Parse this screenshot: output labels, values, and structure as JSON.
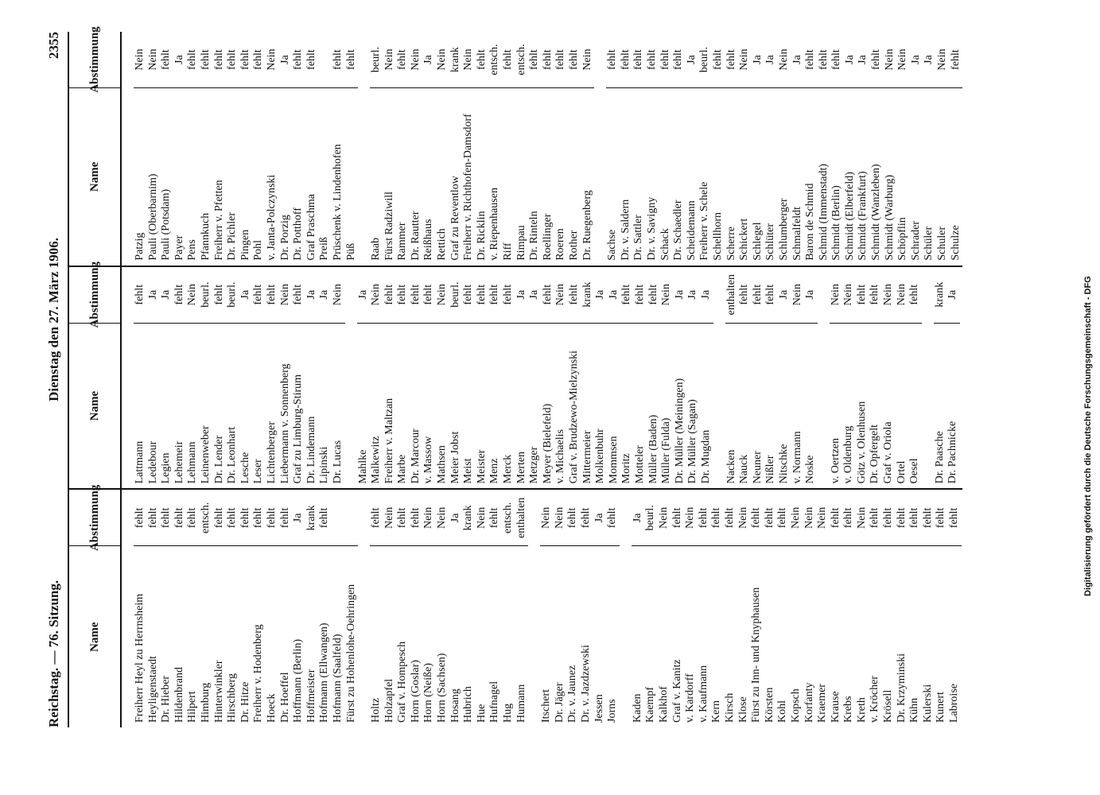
{
  "header": {
    "left": "Reichstag. — 76. Sitzung.",
    "center": "Dienstag den 27. März 1906.",
    "page": "2355"
  },
  "table": {
    "name_header": "Name",
    "vote_header": "Abstimmung",
    "columns": [
      {
        "groups": [
          [
            {
              "name": "Freiherr Heyl zu Herrnsheim",
              "vote": "fehlt"
            },
            {
              "name": "Heyligenstaedt",
              "vote": "fehlt"
            },
            {
              "name": "Dr. Hieber",
              "vote": "fehlt"
            },
            {
              "name": "Hildenbrand",
              "vote": "fehlt"
            },
            {
              "name": "Hilpert",
              "vote": "fehlt"
            },
            {
              "name": "Himburg",
              "vote": "entsch."
            },
            {
              "name": "Hinterwinkler",
              "vote": "fehlt"
            },
            {
              "name": "Hirschberg",
              "vote": "fehlt"
            },
            {
              "name": "Dr. Hitze",
              "vote": "fehlt"
            },
            {
              "name": "Freiherr v. Hodenberg",
              "vote": "fehlt"
            },
            {
              "name": "Hoeck",
              "vote": "fehlt"
            },
            {
              "name": "Dr. Hoeffel",
              "vote": "fehlt"
            },
            {
              "name": "Hoffmann (Berlin)",
              "vote": "Ja"
            },
            {
              "name": "Hoffmeister",
              "vote": "krank"
            },
            {
              "name": "Hofmann (Ellwangen)",
              "vote": "fehlt"
            },
            {
              "name": "Hofmann (Saalfeld)"
            },
            {
              "name": "Fürst zu Hohenlohe-Oehringen"
            }
          ],
          [
            {
              "name": "Holtz",
              "vote": "fehlt"
            },
            {
              "name": "Holzapfel",
              "vote": "Nein"
            },
            {
              "name": "Graf v. Hompesch",
              "vote": "fehlt"
            },
            {
              "name": "Horn (Goslar)",
              "vote": "fehlt"
            },
            {
              "name": "Horn (Neiße)",
              "vote": "Nein"
            },
            {
              "name": "Horn (Sachsen)",
              "vote": "Nein"
            },
            {
              "name": "Hosang",
              "vote": "Ja"
            },
            {
              "name": "Hubrich",
              "vote": "krank"
            },
            {
              "name": "Hue",
              "vote": "Nein"
            },
            {
              "name": "Hufnagel",
              "vote": "fehlt"
            },
            {
              "name": "Hug",
              "vote": "entsch."
            },
            {
              "name": "Humann",
              "vote": "enthalten"
            }
          ],
          [
            {
              "name": "Itschert",
              "vote": "Nein"
            },
            {
              "name": "Dr. Jäger",
              "vote": "Nein"
            },
            {
              "name": "Dr. v. Jaunez",
              "vote": "fehlt"
            },
            {
              "name": "Dr. v. Jazdzewski",
              "vote": "fehlt"
            },
            {
              "name": "Jessen",
              "vote": "Ja"
            },
            {
              "name": "Jorns",
              "vote": "fehlt"
            }
          ],
          [
            {
              "name": "Kaden",
              "vote": "Ja"
            },
            {
              "name": "Kaempf",
              "vote": "beurl."
            },
            {
              "name": "Kalkhof",
              "vote": "Nein"
            },
            {
              "name": "Graf v. Kanitz",
              "vote": "fehlt"
            },
            {
              "name": "v. Kardorff",
              "vote": "Nein"
            },
            {
              "name": "v. Kaufmann",
              "vote": "fehlt"
            },
            {
              "name": "Kern",
              "vote": "fehlt"
            },
            {
              "name": "Kirsch",
              "vote": "fehlt"
            },
            {
              "name": "Klose",
              "vote": "Nein"
            },
            {
              "name": "Fürst zu Inn- und Knyphausen",
              "vote": "fehlt"
            },
            {
              "name": "Körsten",
              "vote": "fehlt"
            },
            {
              "name": "Kohl",
              "vote": "fehlt"
            },
            {
              "name": "Kopsch",
              "vote": "Nein"
            },
            {
              "name": "Korfanty",
              "vote": "Nein"
            },
            {
              "name": "Kraemer",
              "vote": "Nein"
            },
            {
              "name": "Krause",
              "vote": "fehlt"
            },
            {
              "name": "Krebs",
              "vote": "fehlt"
            },
            {
              "name": "Kreth",
              "vote": "Nein"
            },
            {
              "name": "v. Kröcher",
              "vote": "fehlt"
            },
            {
              "name": "Krösell",
              "vote": "fehlt"
            },
            {
              "name": "Dr. Krzyminski",
              "vote": "fehlt"
            },
            {
              "name": "Kühn",
              "vote": "fehlt"
            },
            {
              "name": "Kulerski",
              "vote": "fehlt"
            },
            {
              "name": "Kunert",
              "vote": "fehlt"
            },
            {
              "name": "Labroise",
              "vote": "fehlt"
            }
          ]
        ]
      },
      {
        "groups": [
          [
            {
              "name": "Lattmann",
              "vote": "fehlt"
            },
            {
              "name": "Ledebour",
              "vote": "Ja"
            },
            {
              "name": "Legien",
              "vote": "Ja"
            },
            {
              "name": "Lehemeir",
              "vote": "fehlt"
            },
            {
              "name": "Lehmann",
              "vote": "Nein"
            },
            {
              "name": "Leinenweber",
              "vote": "beurl."
            },
            {
              "name": "Dr. Lender",
              "vote": "fehlt"
            },
            {
              "name": "Dr. Leonhart",
              "vote": "beurl."
            },
            {
              "name": "Lesche",
              "vote": "Ja"
            },
            {
              "name": "Leser",
              "vote": "fehlt"
            },
            {
              "name": "Lichtenberger",
              "vote": "fehlt"
            },
            {
              "name": "Liebermann v. Sonnenberg",
              "vote": "Nein"
            },
            {
              "name": "Graf zu Limburg-Stirum",
              "vote": "fehlt"
            },
            {
              "name": "Dr. Lindemann",
              "vote": "Ja"
            },
            {
              "name": "Lipinski",
              "vote": "Ja"
            },
            {
              "name": "Dr. Lucas",
              "vote": "Nein"
            }
          ],
          [
            {
              "name": "Mahlke",
              "vote": "Ja"
            },
            {
              "name": "Malkewitz",
              "vote": "Nein"
            },
            {
              "name": "Freiherr v. Maltzan",
              "vote": "fehlt"
            },
            {
              "name": "Marbe",
              "vote": "fehlt"
            },
            {
              "name": "Dr. Marcour",
              "vote": "fehlt"
            },
            {
              "name": "v. Massow",
              "vote": "fehlt"
            },
            {
              "name": "Mathsen",
              "vote": "Nein"
            },
            {
              "name": "Meier Jobst",
              "vote": "beurl."
            },
            {
              "name": "Meist",
              "vote": "fehlt"
            },
            {
              "name": "Meister",
              "vote": "fehlt"
            },
            {
              "name": "Menz",
              "vote": "fehlt"
            },
            {
              "name": "Merck",
              "vote": "fehlt"
            },
            {
              "name": "Merten",
              "vote": "Ja"
            },
            {
              "name": "Metzger",
              "vote": "Ja"
            },
            {
              "name": "Meyer (Bielefeld)",
              "vote": "fehlt"
            },
            {
              "name": "v. Michaelis",
              "vote": "Nein"
            },
            {
              "name": "Graf v. Brudzewo-Mielzynski",
              "vote": "fehlt"
            },
            {
              "name": "Mittermeier",
              "vote": "krank"
            },
            {
              "name": "Molkenbuhr",
              "vote": "Ja"
            },
            {
              "name": "Mommsen",
              "vote": "Ja"
            },
            {
              "name": "Moritz",
              "vote": "fehlt"
            },
            {
              "name": "Motteler",
              "vote": "fehlt"
            },
            {
              "name": "Müller (Baden)",
              "vote": "fehlt"
            },
            {
              "name": "Müller (Fulda)",
              "vote": "Nein"
            },
            {
              "name": "Dr. Müller (Meiningen)",
              "vote": "Ja"
            },
            {
              "name": "Dr. Müller (Sagan)",
              "vote": "Ja"
            },
            {
              "name": "Dr. Mugdan",
              "vote": "Ja"
            }
          ],
          [
            {
              "name": "Nacken",
              "vote": "enthalten"
            },
            {
              "name": "Nauck",
              "vote": "fehlt"
            },
            {
              "name": "Neuner",
              "vote": "fehlt"
            },
            {
              "name": "Nißler",
              "vote": "fehlt"
            },
            {
              "name": "Nitschke",
              "vote": "Ja"
            },
            {
              "name": "v. Normann",
              "vote": "Nein"
            },
            {
              "name": "Noske",
              "vote": "Ja"
            }
          ],
          [
            {
              "name": "v. Oertzen",
              "vote": "Nein"
            },
            {
              "name": "v. Oldenburg",
              "vote": "Nein"
            },
            {
              "name": "Götz v. Olenhusen",
              "vote": "fehlt"
            },
            {
              "name": "Dr. Opfergelt",
              "vote": "fehlt"
            },
            {
              "name": "Graf v. Oriola",
              "vote": "Nein"
            },
            {
              "name": "Ortel",
              "vote": "Nein"
            },
            {
              "name": "Oesel",
              "vote": "fehlt"
            }
          ],
          [
            {
              "name": "Dr. Paasche",
              "vote": "krank"
            },
            {
              "name": "Dr. Pachnicke",
              "vote": "Ja"
            }
          ]
        ]
      },
      {
        "groups": [
          [
            {
              "name": "Patzig",
              "vote": "Nein"
            },
            {
              "name": "Pauli (Oberbarnim)",
              "vote": "Nein"
            },
            {
              "name": "Pauli (Potsdam)",
              "vote": "fehlt"
            },
            {
              "name": "Payer",
              "vote": "Ja"
            },
            {
              "name": "Pens",
              "vote": "fehlt"
            },
            {
              "name": "Pfannkuch",
              "vote": "fehlt"
            },
            {
              "name": "Freiherr v. Pfetten",
              "vote": "fehlt"
            },
            {
              "name": "Dr. Pichler",
              "vote": "fehlt"
            },
            {
              "name": "Pingen",
              "vote": "fehlt"
            },
            {
              "name": "Pohl",
              "vote": "fehlt"
            },
            {
              "name": "v. Janta-Polczynski",
              "vote": "Nein"
            },
            {
              "name": "Dr. Porzig",
              "vote": "Ja"
            },
            {
              "name": "Dr. Potthoff",
              "vote": "fehlt"
            },
            {
              "name": "Graf Praschma",
              "vote": "fehlt"
            },
            {
              "name": "Preiß"
            },
            {
              "name": "Prüschenk v. Lindenhofen",
              "vote": "fehlt"
            },
            {
              "name": "Püß",
              "vote": "fehlt"
            }
          ],
          [
            {
              "name": "Raab",
              "vote": "beurl."
            },
            {
              "name": "Fürst Radziwill",
              "vote": "Nein"
            },
            {
              "name": "Rammer",
              "vote": "fehlt"
            },
            {
              "name": "Dr. Rautter",
              "vote": "Nein"
            },
            {
              "name": "Reißhaus",
              "vote": "Ja"
            },
            {
              "name": "Rettich",
              "vote": "Nein"
            },
            {
              "name": "Graf zu Reventlow",
              "vote": "krank"
            },
            {
              "name": "Freiherr v. Richthofen-Damsdorf",
              "vote": "Nein"
            },
            {
              "name": "Dr. Ricklin",
              "vote": "fehlt"
            },
            {
              "name": "v. Riepenhausen",
              "vote": "entsch."
            },
            {
              "name": "Riff",
              "vote": "fehlt"
            },
            {
              "name": "Rimpau",
              "vote": "entsch."
            },
            {
              "name": "Dr. Rinteln",
              "vote": "fehlt"
            },
            {
              "name": "Roellinger",
              "vote": "fehlt"
            },
            {
              "name": "Roeren",
              "vote": "fehlt"
            },
            {
              "name": "Rother",
              "vote": "fehlt"
            },
            {
              "name": "Dr. Ruegenberg",
              "vote": "Nein"
            }
          ],
          [
            {
              "name": "Sachse",
              "vote": "fehlt"
            },
            {
              "name": "Dr. v. Saldern",
              "vote": "fehlt"
            },
            {
              "name": "Dr. Sattler",
              "vote": "fehlt"
            },
            {
              "name": "Dr. v. Savigny",
              "vote": "fehlt"
            },
            {
              "name": "Schack",
              "vote": "fehlt"
            },
            {
              "name": "Dr. Schaedler",
              "vote": "fehlt"
            },
            {
              "name": "Scheidemann",
              "vote": "Ja"
            },
            {
              "name": "Freiherr v. Schele",
              "vote": "beurl."
            },
            {
              "name": "Schellhorn",
              "vote": "fehlt"
            },
            {
              "name": "Scherre",
              "vote": "fehlt"
            },
            {
              "name": "Schickert",
              "vote": "Nein"
            },
            {
              "name": "Schlegel",
              "vote": "Ja"
            },
            {
              "name": "Schlüter",
              "vote": "Ja"
            },
            {
              "name": "Schlumberger",
              "vote": "Nein"
            },
            {
              "name": "Schmalfeldt",
              "vote": "Ja"
            },
            {
              "name": "Baron de Schmid",
              "vote": "fehlt"
            },
            {
              "name": "Schmid (Immenstadt)",
              "vote": "fehlt"
            },
            {
              "name": "Schmidt (Berlin)",
              "vote": "fehlt"
            },
            {
              "name": "Schmidt (Elberfeld)",
              "vote": "Ja"
            },
            {
              "name": "Schmidt (Frankfurt)",
              "vote": "Ja"
            },
            {
              "name": "Schmidt (Wanzleben)",
              "vote": "fehlt"
            },
            {
              "name": "Schmidt (Warburg)",
              "vote": "Nein"
            },
            {
              "name": "Schöpflin",
              "vote": "Nein"
            },
            {
              "name": "Schrader",
              "vote": "Ja"
            },
            {
              "name": "Schüler",
              "vote": "Ja"
            },
            {
              "name": "Schuler",
              "vote": "Nein"
            },
            {
              "name": "Schulze",
              "vote": "fehlt"
            }
          ]
        ]
      }
    ]
  },
  "footer": "Digitalisierung gefördert durch die Deutsche Forschungsgemeinschaft - DFG"
}
